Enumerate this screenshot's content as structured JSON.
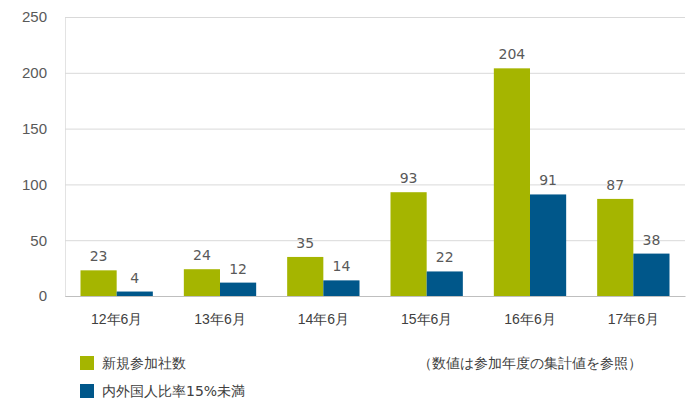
{
  "chart_data": {
    "type": "bar",
    "categories": [
      "12年6月",
      "13年6月",
      "14年6月",
      "15年6月",
      "16年6月",
      "17年6月"
    ],
    "series": [
      {
        "name": "新規参加社数",
        "color": "#a5b500",
        "values": [
          23,
          24,
          35,
          93,
          204,
          87
        ]
      },
      {
        "name": "内外国人比率15%未満",
        "color": "#00578a",
        "values": [
          4,
          12,
          14,
          22,
          91,
          38
        ]
      }
    ],
    "annotations": [
      "（数値は参加年度の集計値を参照）"
    ],
    "ylim": [
      0,
      250
    ],
    "yticks": [
      0,
      50,
      100,
      150,
      200,
      250
    ],
    "grid": true,
    "data_labels": true,
    "legend": "bottom"
  }
}
